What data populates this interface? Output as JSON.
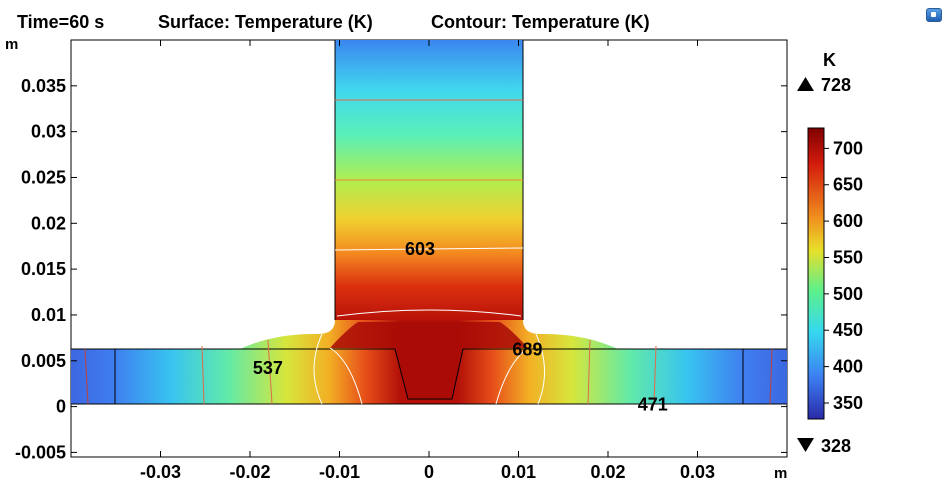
{
  "header": {
    "time": "Time=60 s",
    "surface": "Surface: Temperature (K)",
    "contour": "Contour: Temperature (K)"
  },
  "axes": {
    "x_unit": "m",
    "y_unit": "m",
    "xlim": [
      -0.04,
      0.04
    ],
    "ylim": [
      -0.0055,
      0.04
    ],
    "x_ticks": [
      -0.03,
      -0.02,
      -0.01,
      0,
      0.01,
      0.02,
      0.03
    ],
    "x_tick_labels": [
      "-0.03",
      "-0.02",
      "-0.01",
      "0",
      "0.01",
      "0.02",
      "0.03"
    ],
    "y_ticks": [
      -0.005,
      0,
      0.005,
      0.01,
      0.015,
      0.02,
      0.025,
      0.03,
      0.035
    ],
    "y_tick_labels": [
      "-0.005",
      "0",
      "0.005",
      "0.01",
      "0.015",
      "0.02",
      "0.025",
      "0.03",
      "0.035"
    ]
  },
  "colorbar": {
    "unit": "K",
    "max_label": "728",
    "min_label": "328",
    "range": [
      328,
      728
    ],
    "ticks": [
      350,
      400,
      450,
      500,
      550,
      600,
      650,
      700
    ],
    "tick_labels": [
      "350",
      "400",
      "450",
      "500",
      "550",
      "600",
      "650",
      "700"
    ],
    "colormap": "rainbow (blue → cyan → green → yellow → orange → red → dark red)"
  },
  "chart_data": {
    "type": "heatmap",
    "title": "Surface: Temperature (K)  Contour: Temperature (K)",
    "time": "Time=60 s",
    "xlabel": "m",
    "ylabel": "m",
    "xlim": [
      -0.04,
      0.04
    ],
    "ylim": [
      -0.0055,
      0.04
    ],
    "grid": false,
    "legend": "right",
    "value_range": [
      328,
      728
    ],
    "geometry": {
      "plate": {
        "x": [
          -0.04,
          0.04
        ],
        "y": [
          0,
          0.006
        ]
      },
      "stem": {
        "x": [
          -0.0105,
          0.0105
        ],
        "y": [
          0.006,
          0.04
        ]
      }
    },
    "contour_labels": [
      {
        "text": "603",
        "x": -0.001,
        "y": 0.017
      },
      {
        "text": "537",
        "x": -0.018,
        "y": 0.004
      },
      {
        "text": "689",
        "x": 0.011,
        "y": 0.006
      },
      {
        "text": "471",
        "x": 0.025,
        "y": 0.0
      }
    ]
  }
}
